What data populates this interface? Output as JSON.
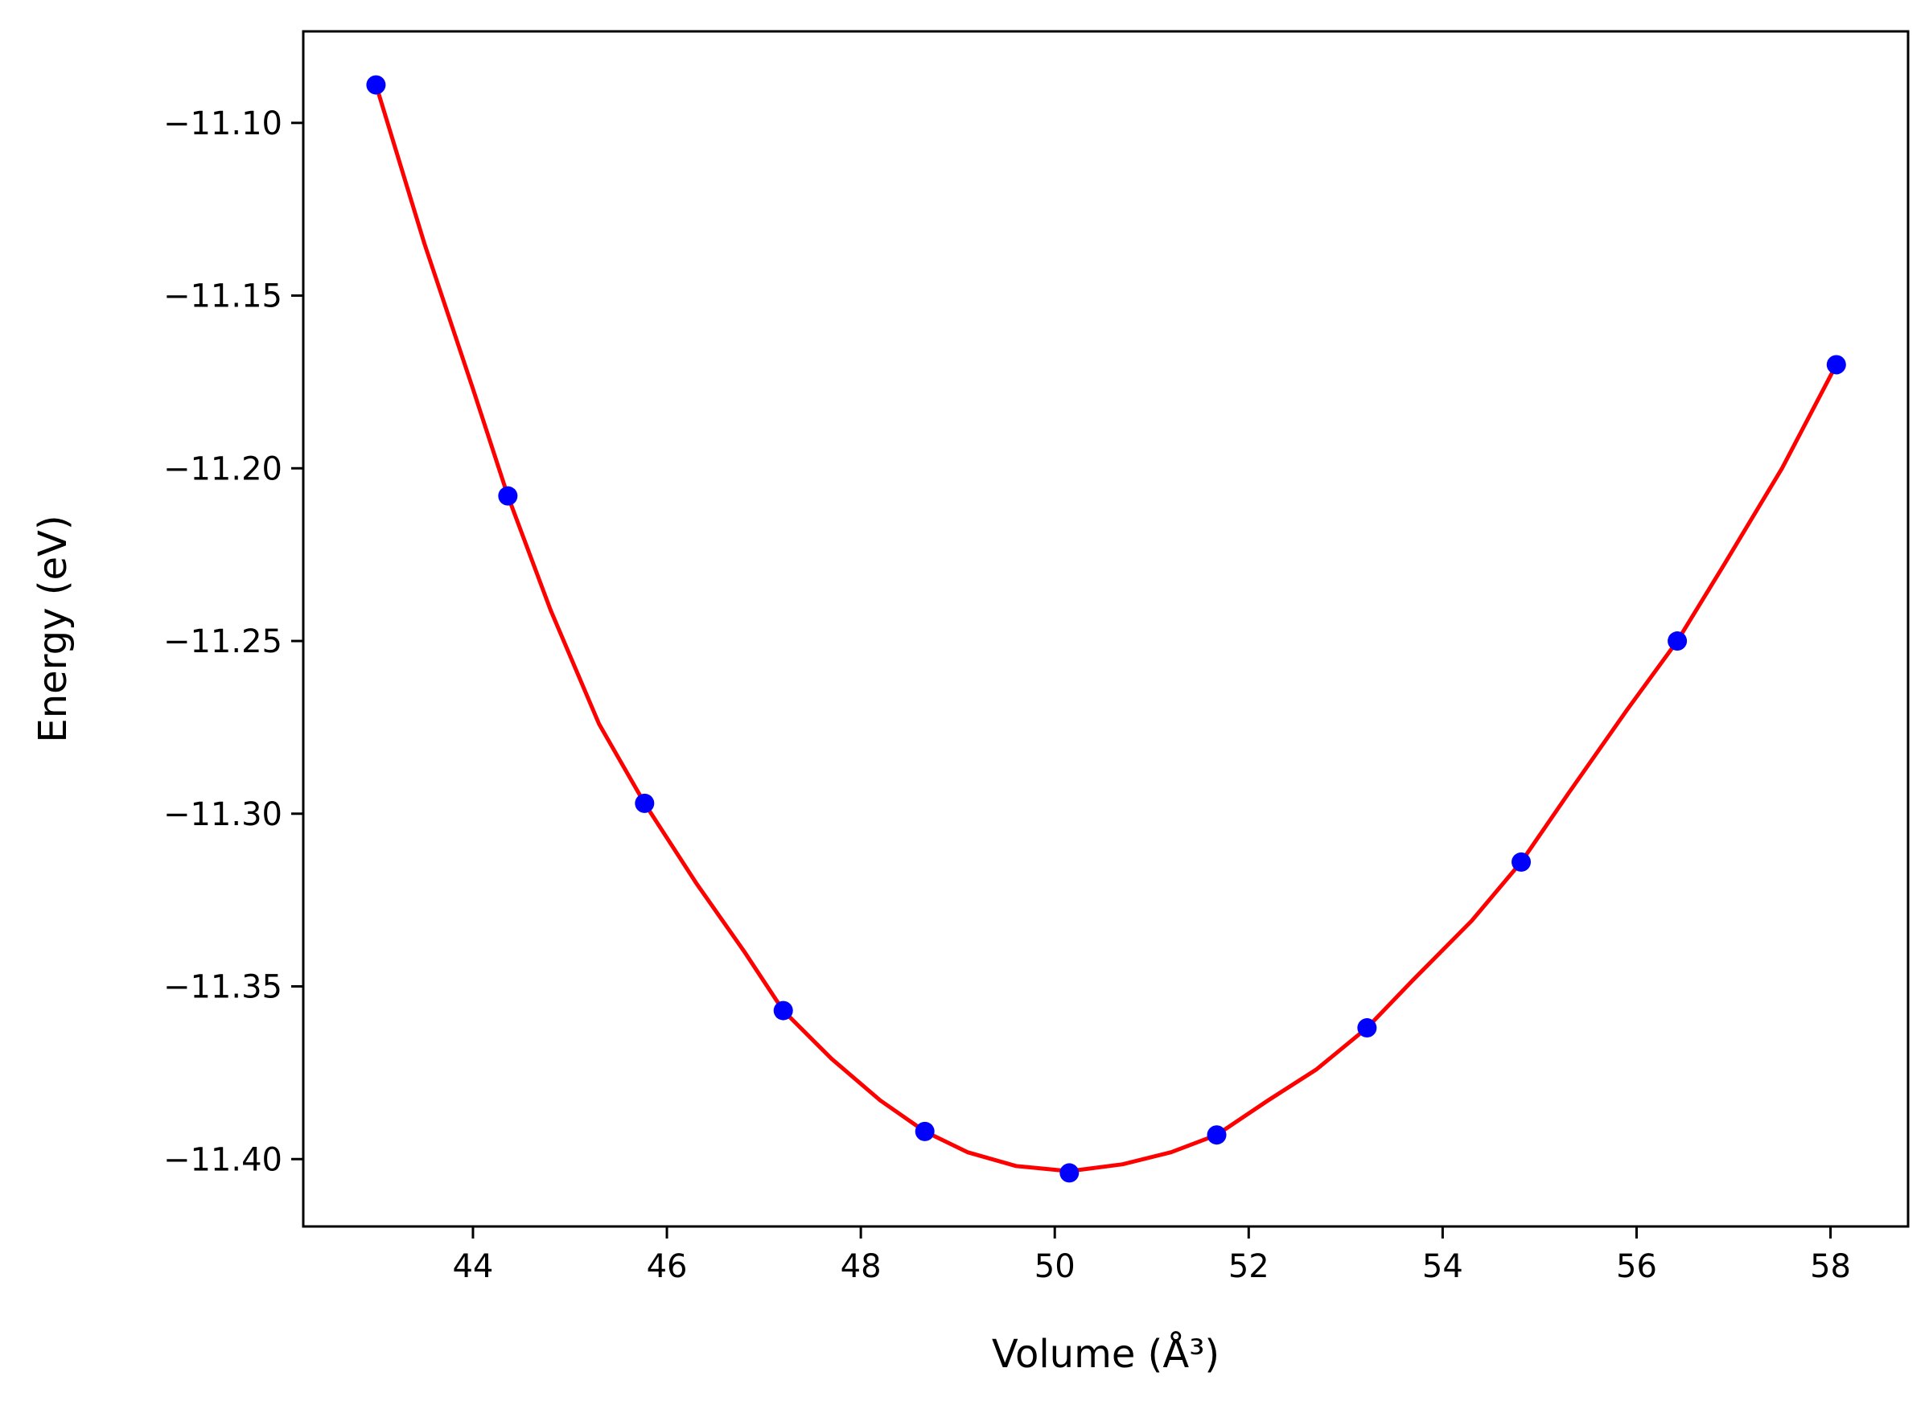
{
  "chart_data": {
    "type": "scatter",
    "title": "",
    "xlabel": "Volume (Å³)",
    "ylabel": "Energy (eV)",
    "xlim": [
      42.25,
      58.8
    ],
    "ylim": [
      -11.4195,
      -11.0735
    ],
    "x_ticks": [
      44,
      46,
      48,
      50,
      52,
      54,
      56,
      58
    ],
    "y_ticks": [
      -11.1,
      -11.15,
      -11.2,
      -11.25,
      -11.3,
      -11.35,
      -11.4
    ],
    "x_tick_labels": [
      "44",
      "46",
      "48",
      "50",
      "52",
      "54",
      "56",
      "58"
    ],
    "y_tick_labels": [
      "−11.10",
      "−11.15",
      "−11.20",
      "−11.25",
      "−11.30",
      "−11.35",
      "−11.40"
    ],
    "grid": false,
    "series": [
      {
        "kind": "points",
        "color": "#0000ff",
        "x": [
          43.0,
          44.36,
          45.77,
          47.2,
          48.66,
          50.15,
          51.67,
          53.22,
          54.81,
          56.42,
          58.06
        ],
        "y": [
          -11.089,
          -11.208,
          -11.297,
          -11.357,
          -11.392,
          -11.404,
          -11.393,
          -11.362,
          -11.314,
          -11.25,
          -11.17
        ]
      },
      {
        "kind": "fit-curve",
        "color": "#ff0000",
        "x": [
          43.0,
          43.5,
          44.0,
          44.36,
          44.8,
          45.3,
          45.77,
          46.3,
          46.8,
          47.2,
          47.7,
          48.2,
          48.66,
          49.1,
          49.6,
          50.15,
          50.7,
          51.2,
          51.67,
          52.2,
          52.7,
          53.22,
          53.7,
          54.3,
          54.81,
          55.3,
          55.9,
          56.42,
          56.9,
          57.5,
          58.06
        ],
        "y": [
          -11.089,
          -11.135,
          -11.177,
          -11.208,
          -11.241,
          -11.274,
          -11.297,
          -11.32,
          -11.34,
          -11.357,
          -11.371,
          -11.383,
          -11.392,
          -11.398,
          -11.402,
          -11.4035,
          -11.4015,
          -11.398,
          -11.393,
          -11.383,
          -11.374,
          -11.362,
          -11.348,
          -11.331,
          -11.314,
          -11.294,
          -11.27,
          -11.25,
          -11.228,
          -11.2,
          -11.17
        ]
      }
    ]
  }
}
